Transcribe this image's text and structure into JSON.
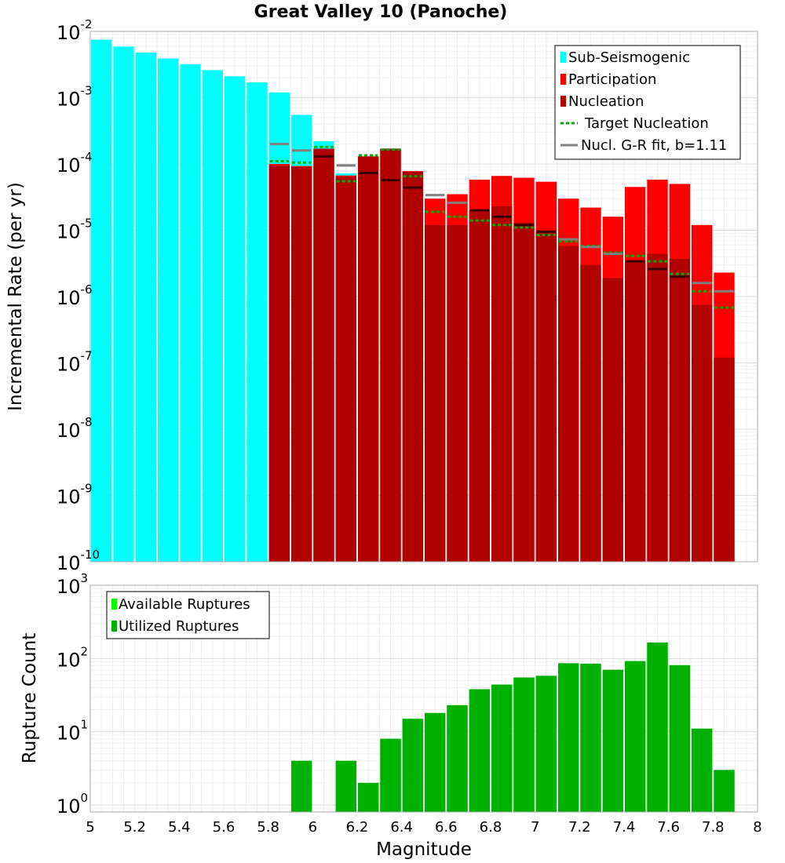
{
  "chart_data": [
    {
      "type": "bar",
      "title": "Great Valley 10 (Panoche)",
      "xlabel": "Magnitude",
      "ylabel": "Incremental Rate (per yr)",
      "xlim": [
        5,
        8
      ],
      "ylim": [
        1e-10,
        0.01
      ],
      "yscale": "log",
      "grid": true,
      "legend_position": "top-right",
      "y_ticks": [
        {
          "base": "10",
          "exp": "-10"
        },
        {
          "base": "10",
          "exp": "-9"
        },
        {
          "base": "10",
          "exp": "-8"
        },
        {
          "base": "10",
          "exp": "-7"
        },
        {
          "base": "10",
          "exp": "-6"
        },
        {
          "base": "10",
          "exp": "-5"
        },
        {
          "base": "10",
          "exp": "-4"
        },
        {
          "base": "10",
          "exp": "-3"
        },
        {
          "base": "10",
          "exp": "-2"
        }
      ],
      "bin_width": 0.1,
      "series": [
        {
          "name": "Sub-Seismogenic",
          "kind": "bar",
          "color": "#00ffff",
          "x": [
            5.05,
            5.15,
            5.25,
            5.35,
            5.45,
            5.55,
            5.65,
            5.75,
            5.85,
            5.95,
            6.05,
            6.15
          ],
          "values": [
            0.0075,
            0.0059,
            0.0048,
            0.0039,
            0.0032,
            0.0026,
            0.0021,
            0.0017,
            0.0012,
            0.00055,
            0.00022,
            7.2e-05
          ]
        },
        {
          "name": "Participation",
          "kind": "bar",
          "color": "#ff0000",
          "x": [
            5.85,
            5.95,
            6.05,
            6.15,
            6.25,
            6.35,
            6.45,
            6.55,
            6.65,
            6.75,
            6.85,
            6.95,
            7.05,
            7.15,
            7.25,
            7.35,
            7.45,
            7.55,
            7.65,
            7.75,
            7.85
          ],
          "values": [
            0.0001,
            9.3e-05,
            0.00017,
            6.7e-05,
            0.00013,
            0.00017,
            7.8e-05,
            3e-05,
            3.5e-05,
            5.8e-05,
            6.6e-05,
            6.2e-05,
            5.4e-05,
            3e-05,
            2.2e-05,
            1.6e-05,
            4.5e-05,
            5.8e-05,
            5e-05,
            1.2e-05,
            2.3e-06
          ]
        },
        {
          "name": "Nucleation",
          "kind": "bar",
          "color": "#b00000",
          "x": [
            5.85,
            5.95,
            6.05,
            6.15,
            6.25,
            6.35,
            6.45,
            6.55,
            6.65,
            6.75,
            6.85,
            6.95,
            7.05,
            7.15,
            7.25,
            7.35,
            7.45,
            7.55,
            7.65,
            7.75,
            7.85
          ],
          "values": [
            9.5e-05,
            9e-05,
            0.00017,
            6.4e-05,
            0.00013,
            0.00017,
            7.6e-05,
            1.2e-05,
            1.2e-05,
            2e-05,
            2.3e-05,
            1.3e-05,
            9.5e-06,
            5.8e-06,
            3e-06,
            1.9e-06,
            3.5e-06,
            4.4e-06,
            3.7e-06,
            7.5e-07,
            1.2e-07
          ]
        },
        {
          "name": "Target Nucleation",
          "kind": "step",
          "color": "#00b000",
          "x": [
            5.85,
            5.95,
            6.05,
            6.15,
            6.25,
            6.35,
            6.45,
            6.55,
            6.65,
            6.75,
            6.85,
            6.95,
            7.05,
            7.15,
            7.25,
            7.35,
            7.45,
            7.55,
            7.65,
            7.75,
            7.85
          ],
          "values": [
            0.00011,
            0.000105,
            0.00018,
            5.5e-05,
            0.000135,
            0.000165,
            6.5e-05,
            1.9e-05,
            1.6e-05,
            1.4e-05,
            1.2e-05,
            1.1e-05,
            8.5e-06,
            6.8e-06,
            5.8e-06,
            4.6e-06,
            4.1e-06,
            3.4e-06,
            2.2e-06,
            1.2e-06,
            6.8e-07
          ]
        },
        {
          "name": "Nucl. G-R fit, b=1.11",
          "kind": "step",
          "color": "#808080",
          "x": [
            5.85,
            5.95,
            6.05,
            6.15,
            6.25,
            6.35,
            6.45,
            6.55,
            6.65,
            6.75,
            6.85,
            6.95,
            7.05,
            7.15,
            7.25,
            7.35,
            7.45,
            7.55,
            7.65,
            7.75,
            7.85
          ],
          "values": [
            0.0002,
            0.00016,
            0.00013,
            9.5e-05,
            7.3e-05,
            5.7e-05,
            4.4e-05,
            3.4e-05,
            2.6e-05,
            2e-05,
            1.6e-05,
            1.2e-05,
            9.5e-06,
            7.3e-06,
            5.6e-06,
            4.4e-06,
            3.4e-06,
            2.6e-06,
            2e-06,
            1.6e-06,
            1.2e-06
          ]
        }
      ]
    },
    {
      "type": "bar",
      "xlabel": "Magnitude",
      "ylabel": "Rupture Count",
      "xlim": [
        5,
        8
      ],
      "ylim": [
        0.8,
        1000
      ],
      "yscale": "log",
      "grid": true,
      "legend_position": "top-left",
      "x_ticks": [
        "5",
        "5.2",
        "5.4",
        "5.6",
        "5.8",
        "6",
        "6.2",
        "6.4",
        "6.6",
        "6.8",
        "7",
        "7.2",
        "7.4",
        "7.6",
        "7.8",
        "8"
      ],
      "y_ticks": [
        {
          "base": "10",
          "exp": "0"
        },
        {
          "base": "10",
          "exp": "1"
        },
        {
          "base": "10",
          "exp": "2"
        },
        {
          "base": "10",
          "exp": "3"
        }
      ],
      "series": [
        {
          "name": "Available Ruptures",
          "kind": "bar",
          "color": "#00ff00",
          "x": [
            5.95,
            6.15,
            6.25,
            6.35,
            6.45,
            6.55,
            6.65,
            6.75,
            6.85,
            6.95,
            7.05,
            7.15,
            7.25,
            7.35,
            7.45,
            7.55,
            7.65,
            7.75,
            7.85
          ],
          "values": [
            4,
            4,
            2,
            8,
            15,
            18,
            23,
            38,
            44,
            55,
            58,
            86,
            85,
            70,
            92,
            165,
            81,
            11,
            3
          ]
        },
        {
          "name": "Utilized Ruptures",
          "kind": "bar",
          "color": "#00b000",
          "x": [
            5.95,
            6.15,
            6.25,
            6.35,
            6.45,
            6.55,
            6.65,
            6.75,
            6.85,
            6.95,
            7.05,
            7.15,
            7.25,
            7.35,
            7.45,
            7.55,
            7.65,
            7.75,
            7.85
          ],
          "values": [
            4,
            4,
            2,
            8,
            15,
            18,
            23,
            38,
            44,
            55,
            58,
            86,
            85,
            70,
            92,
            165,
            81,
            11,
            3
          ]
        }
      ]
    }
  ]
}
